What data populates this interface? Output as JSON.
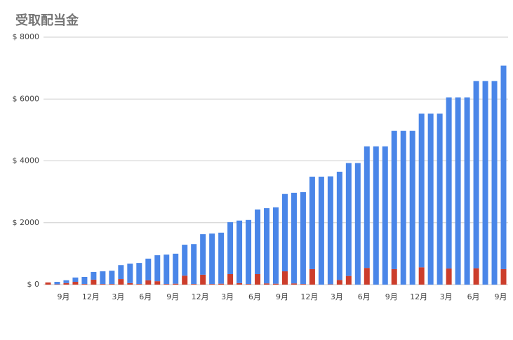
{
  "chart_data": {
    "type": "stacked_bar",
    "title": "受取配当金",
    "categories": [
      null,
      null,
      "9月",
      null,
      null,
      "12月",
      null,
      null,
      "3月",
      null,
      null,
      "6月",
      null,
      null,
      "9月",
      null,
      null,
      "12月",
      null,
      null,
      "3月",
      null,
      null,
      "6月",
      null,
      null,
      "9月",
      null,
      null,
      "12月",
      null,
      null,
      "3月",
      null,
      null,
      "6月",
      null,
      null,
      "9月",
      null,
      null,
      "12月",
      null,
      null,
      "3月",
      null,
      null,
      "6月",
      null,
      null,
      "9月"
    ],
    "series": [
      {
        "color": "#cc3d2b",
        "values": [
          70,
          10,
          50,
          90,
          20,
          160,
          20,
          20,
          180,
          50,
          20,
          140,
          110,
          20,
          30,
          290,
          20,
          320,
          20,
          30,
          340,
          50,
          20,
          340,
          40,
          30,
          430,
          40,
          20,
          500,
          0,
          10,
          150,
          280,
          0,
          540,
          0,
          0,
          500,
          0,
          0,
          560,
          0,
          0,
          520,
          0,
          0,
          530,
          0,
          0,
          500
        ]
      },
      {
        "color": "#4a86e8",
        "values": [
          0,
          80,
          90,
          140,
          230,
          250,
          410,
          430,
          450,
          630,
          680,
          700,
          840,
          950,
          970,
          1000,
          1290,
          1310,
          1630,
          1650,
          1680,
          2020,
          2070,
          2090,
          2430,
          2470,
          2500,
          2930,
          2970,
          2990,
          3490,
          3490,
          3500,
          3650,
          3930,
          3930,
          4470,
          4470,
          4470,
          4970,
          4970,
          4970,
          5530,
          5530,
          5530,
          6050,
          6050,
          6050,
          6580,
          6580,
          6580
        ]
      }
    ],
    "ylim": [
      0,
      8000
    ],
    "yticks": [
      {
        "value": 0,
        "label": "$ 0"
      },
      {
        "value": 2000,
        "label": "$ 2000"
      },
      {
        "value": 4000,
        "label": "$ 4000"
      },
      {
        "value": 6000,
        "label": "$ 6000"
      },
      {
        "value": 8000,
        "label": "$ 8000"
      }
    ],
    "grid": true
  }
}
